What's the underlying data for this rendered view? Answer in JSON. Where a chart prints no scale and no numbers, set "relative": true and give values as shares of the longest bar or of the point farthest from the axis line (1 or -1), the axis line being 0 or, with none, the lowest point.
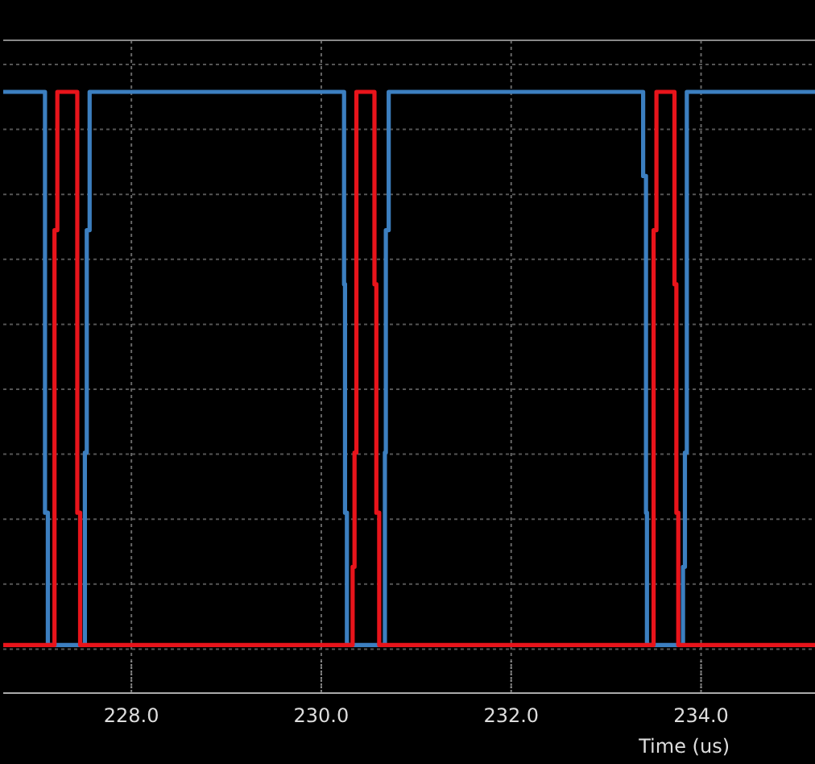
{
  "chart_data": {
    "type": "step",
    "relative": true,
    "xlabel": "Time (us)",
    "xlim": [
      226.65,
      235.2
    ],
    "xticks": [
      {
        "value": 228,
        "label": "228.0"
      },
      {
        "value": 230,
        "label": "230.0"
      },
      {
        "value": 232,
        "label": "232.0"
      },
      {
        "value": 234,
        "label": "234.0"
      }
    ],
    "grid": true,
    "series": [
      {
        "color": "#3c7fc0",
        "x": [
          226.65,
          227.09,
          227.12,
          227.51,
          227.53,
          227.56,
          230.24,
          230.25,
          230.27,
          230.67,
          230.68,
          230.71,
          233.39,
          233.42,
          233.43,
          233.81,
          233.83,
          233.85,
          235.2
        ],
        "values": [
          1,
          0.3,
          0.08,
          0.4,
          0.77,
          1,
          0.68,
          0.3,
          0.08,
          0.4,
          0.77,
          1,
          0.86,
          0.3,
          0.08,
          0.21,
          0.4,
          1,
          1
        ]
      },
      {
        "color": "#e8141b",
        "x": [
          226.65,
          227.19,
          227.22,
          227.43,
          227.46,
          230.33,
          230.35,
          230.37,
          230.56,
          230.58,
          230.61,
          233.5,
          233.53,
          233.72,
          233.74,
          233.76,
          235.2
        ],
        "values": [
          0.08,
          0.77,
          1,
          0.3,
          0.08,
          0.21,
          0.4,
          1,
          0.68,
          0.3,
          0.08,
          0.77,
          1,
          0.68,
          0.3,
          0.08,
          0.08
        ]
      }
    ]
  }
}
